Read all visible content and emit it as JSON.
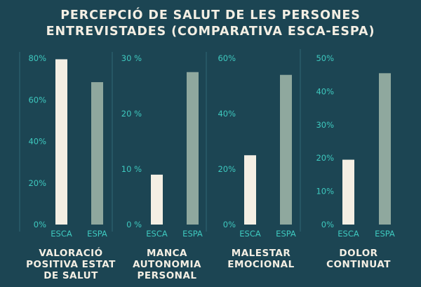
{
  "title_lines": [
    "PERCEPCIÓ DE SALUT DE LES PERSONES",
    "ENTREVISTADES (COMPARATIVA ESCA-ESPA)"
  ],
  "colors": {
    "background": "#1c4553",
    "esca": "#f4efe4",
    "espa": "#8fa89e",
    "tick": "#3ec9bf",
    "label": "#f4efe4"
  },
  "chart_data": [
    {
      "type": "bar",
      "categories": [
        "ESCA",
        "ESPA"
      ],
      "values": [
        79.5,
        68.5
      ],
      "ylim": [
        0,
        80
      ],
      "yticks": [
        0,
        20,
        40,
        60,
        80
      ],
      "tick_labels": [
        "0%",
        "20%",
        "40%",
        "60%",
        "80%"
      ],
      "label_lines": [
        "VALORACIÓ",
        "POSITIVA ESTAT",
        "DE SALUT"
      ]
    },
    {
      "type": "bar",
      "categories": [
        "ESCA",
        "ESPA"
      ],
      "values": [
        9,
        27.5
      ],
      "ylim": [
        0,
        30
      ],
      "yticks": [
        0,
        10,
        20,
        30
      ],
      "tick_labels": [
        "0 %",
        "10 %",
        "20 %",
        "30 %"
      ],
      "label_lines": [
        "MANCA",
        "AUTONOMIA",
        "PERSONAL"
      ]
    },
    {
      "type": "bar",
      "categories": [
        "ESCA",
        "ESPA"
      ],
      "values": [
        25,
        54
      ],
      "ylim": [
        0,
        60
      ],
      "yticks": [
        0,
        20,
        40,
        60
      ],
      "tick_labels": [
        "0%",
        "20%",
        "40%",
        "60%"
      ],
      "label_lines": [
        "MALESTAR",
        "EMOCIONAL"
      ]
    },
    {
      "type": "bar",
      "categories": [
        "ESCA",
        "ESPA"
      ],
      "values": [
        19.5,
        45.5
      ],
      "ylim": [
        0,
        50
      ],
      "yticks": [
        0,
        10,
        20,
        30,
        40,
        50
      ],
      "tick_labels": [
        "0%",
        "10%",
        "20%",
        "30%",
        "40%",
        "50%"
      ],
      "label_lines": [
        "DOLOR",
        "CONTINUAT"
      ]
    }
  ]
}
